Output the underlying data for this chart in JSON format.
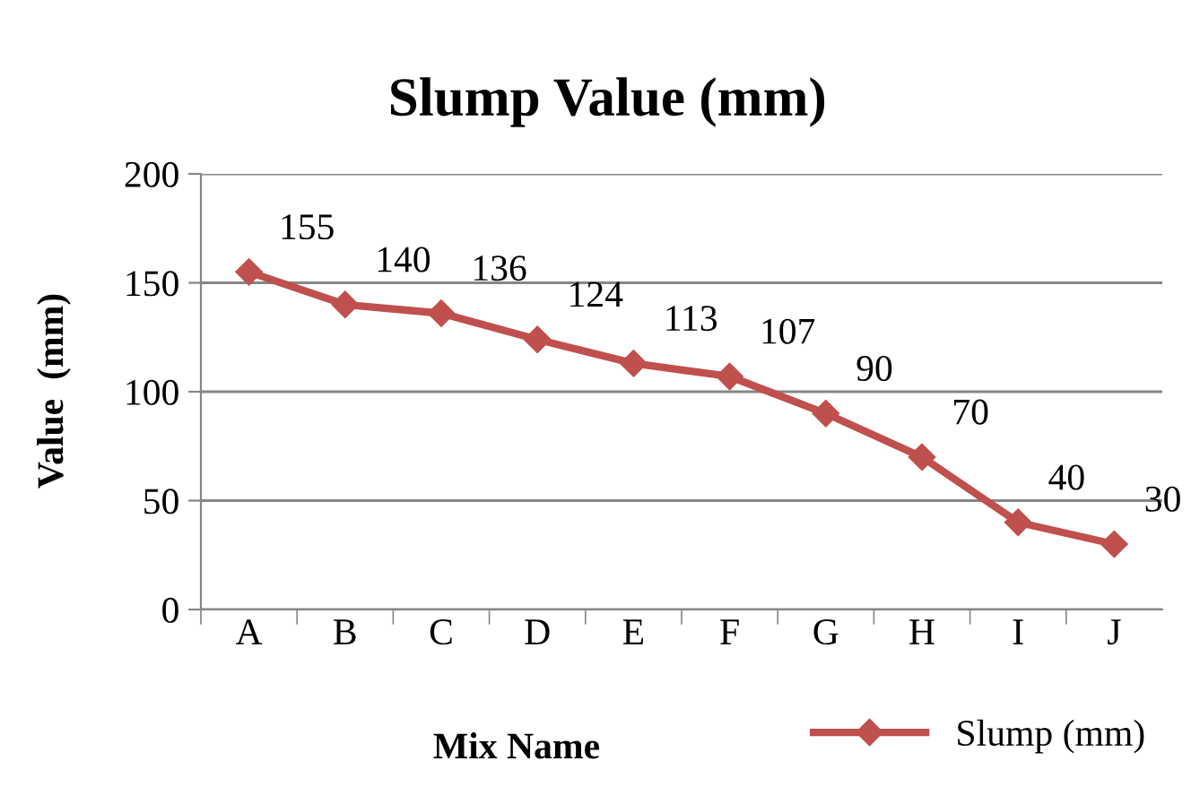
{
  "chart_data": {
    "type": "line",
    "title": "Slump Value (mm)",
    "xlabel": "Mix Name",
    "ylabel": "Value  (mm)",
    "categories": [
      "A",
      "B",
      "C",
      "D",
      "E",
      "F",
      "G",
      "H",
      "I",
      "J"
    ],
    "series": [
      {
        "name": "Slump (mm)",
        "color": "#c0504d",
        "values": [
          155,
          140,
          136,
          124,
          113,
          107,
          90,
          70,
          40,
          30
        ]
      }
    ],
    "ylim": [
      0,
      200
    ],
    "yticks": [
      0,
      50,
      100,
      150,
      200
    ],
    "grid": "y",
    "legend": "bottom right",
    "marker": "diamond",
    "line_style": "solid",
    "data_labels": true
  }
}
